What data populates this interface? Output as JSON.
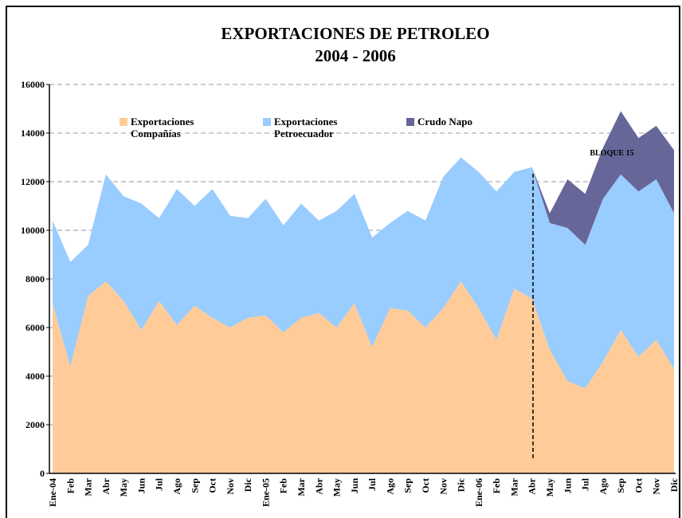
{
  "chart_data": {
    "type": "stacked_area",
    "title": "EXPORTACIONES DE PETROLEO",
    "subtitle": "2004 - 2006",
    "annotations": [
      "BLOQUE 15"
    ],
    "categories": [
      "Ene-04",
      "Feb",
      "Mar",
      "Abr",
      "May",
      "Jun",
      "Jul",
      "Ago",
      "Sep",
      "Oct",
      "Nov",
      "Dic",
      "Ene-05",
      "Feb",
      "Mar",
      "Abr",
      "May",
      "Jun",
      "Jul",
      "Ago",
      "Sep",
      "Oct",
      "Nov",
      "Dic",
      "Ene-06",
      "Feb",
      "Mar",
      "Abr",
      "May",
      "Jun",
      "Jul",
      "Ago",
      "Sep",
      "Oct",
      "Nov",
      "Dic"
    ],
    "series": [
      {
        "name": "Exportaciones Compañías",
        "color": "#ffcc99",
        "values": [
          7000,
          4400,
          7300,
          7900,
          7100,
          5900,
          7100,
          6100,
          6900,
          6400,
          6000,
          6400,
          6500,
          5800,
          6400,
          6600,
          6000,
          7000,
          5200,
          6800,
          6700,
          6000,
          6800,
          7900,
          6800,
          5500,
          7600,
          7200,
          5100,
          3800,
          3500,
          4600,
          5900,
          4800,
          5500,
          4300
        ]
      },
      {
        "name": "Exportaciones Petroecuador",
        "color": "#99ccff",
        "values": [
          3400,
          4300,
          2100,
          4400,
          4300,
          5200,
          3400,
          5600,
          4100,
          5300,
          4600,
          4100,
          4800,
          4400,
          4700,
          3800,
          4800,
          4500,
          4500,
          3500,
          4100,
          4400,
          5400,
          5100,
          5600,
          6100,
          4800,
          5400,
          5200,
          6300,
          5900,
          6700,
          6400,
          6800,
          6600,
          6400
        ]
      },
      {
        "name": "Crudo Napo",
        "color": "#666699",
        "values": [
          null,
          null,
          null,
          null,
          null,
          null,
          null,
          null,
          null,
          null,
          null,
          null,
          null,
          null,
          null,
          null,
          null,
          null,
          null,
          null,
          null,
          null,
          null,
          null,
          null,
          null,
          null,
          0,
          400,
          2000,
          2100,
          2100,
          2600,
          2200,
          2200,
          2600
        ]
      }
    ],
    "ylim": [
      0,
      16000
    ],
    "yticks": [
      0,
      2000,
      4000,
      6000,
      8000,
      10000,
      12000,
      14000,
      16000
    ],
    "grid": true
  }
}
